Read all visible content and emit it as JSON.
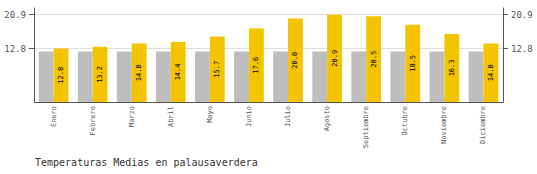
{
  "chart_data": {
    "type": "bar",
    "title": "Temperaturas Medias en palausaverdera",
    "categories": [
      "Enero",
      "Febrero",
      "Marzo",
      "Abril",
      "Mayo",
      "Junio",
      "Julio",
      "Agosto",
      "Septiembre",
      "Octubre",
      "Noviembre",
      "Diciembre"
    ],
    "series": [
      {
        "color": "#BEBEBE",
        "values": [
          12.1,
          12.1,
          12.1,
          12.1,
          12.1,
          12.1,
          12.1,
          12.1,
          12.1,
          12.1,
          12.1,
          12.1
        ]
      },
      {
        "color": "#F5C400",
        "values": [
          12.8,
          13.2,
          14.0,
          14.4,
          15.7,
          17.6,
          20.0,
          20.9,
          20.5,
          18.5,
          16.3,
          14.0
        ],
        "value_labels": [
          "12.8",
          "13.2",
          "14.0",
          "14.4",
          "15.7",
          "17.6",
          "20.0",
          "20.9",
          "20.5",
          "18.5",
          "16.3",
          "14.0"
        ],
        "data_labels": true
      }
    ],
    "ylim": [
      0,
      22.5
    ],
    "yticks": [
      12.8,
      20.9
    ],
    "y2lim": [
      0,
      22.5
    ],
    "y2ticks": [
      12.8,
      20.9
    ],
    "grid": true
  }
}
